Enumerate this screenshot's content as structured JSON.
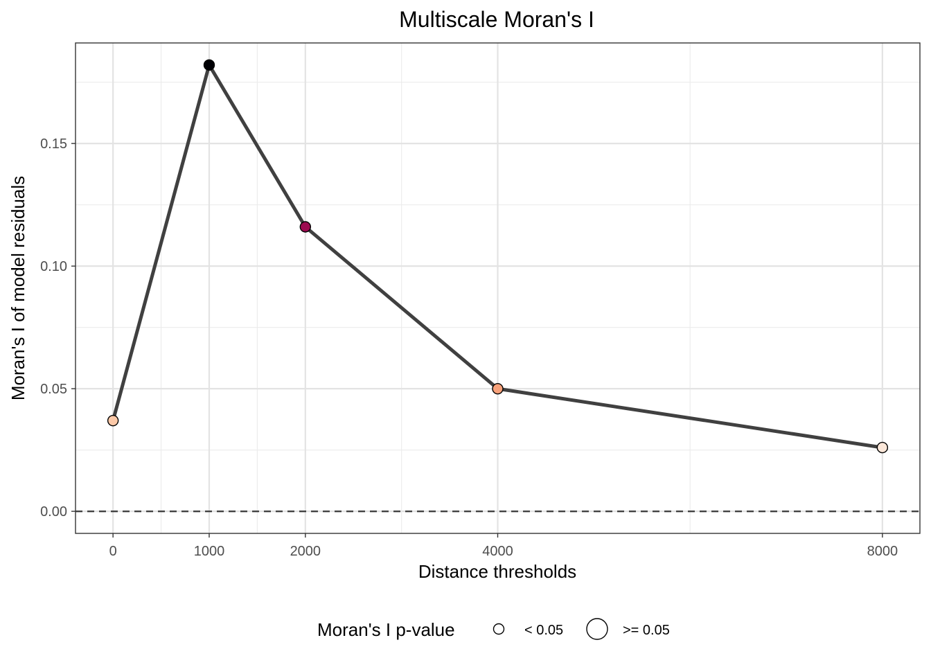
{
  "chart_data": {
    "type": "line",
    "title": "Multiscale Moran's I",
    "xlabel": "Distance thresholds",
    "ylabel": "Moran's I of model residuals",
    "x": [
      0,
      1000,
      2000,
      4000,
      8000
    ],
    "x_ticks": [
      0,
      1000,
      2000,
      4000,
      8000
    ],
    "x_tick_labels": [
      "0",
      "1000",
      "2000",
      "4000",
      "8000"
    ],
    "y_ticks": [
      0.0,
      0.05,
      0.1,
      0.15
    ],
    "y_tick_labels": [
      "0.00",
      "0.05",
      "0.10",
      "0.15"
    ],
    "xlim": [
      -390,
      8390
    ],
    "ylim": [
      -0.009,
      0.191
    ],
    "series": [
      {
        "values": [
          0.037,
          0.182,
          0.116,
          0.05,
          0.026
        ],
        "p_value_class": [
          "< 0.05",
          "< 0.05",
          "< 0.05",
          "< 0.05",
          "< 0.05"
        ],
        "point_colors": [
          "#fcc9a8",
          "#000004",
          "#9c0a50",
          "#f7a17a",
          "#fbe7d9"
        ],
        "line_color": "#404040"
      }
    ],
    "reference_line": {
      "y": 0,
      "style": "dashed",
      "color": "#404040"
    },
    "grid": true,
    "legend": {
      "position": "bottom",
      "title": "Moran's I p-value",
      "items": [
        {
          "label": "< 0.05",
          "size": "small"
        },
        {
          "label": ">= 0.05",
          "size": "large"
        }
      ]
    }
  }
}
